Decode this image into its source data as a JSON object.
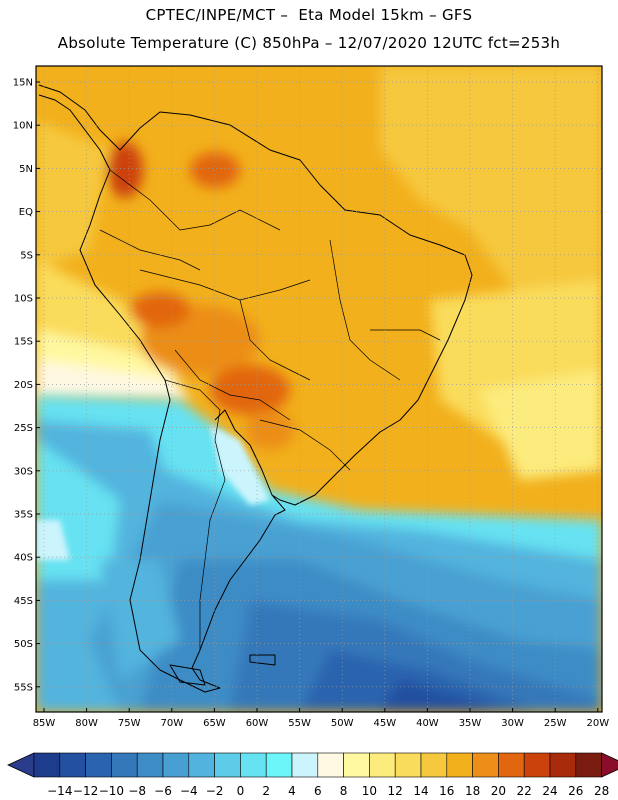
{
  "header": {
    "line1": "CPTEC/INPE/MCT –  Eta Model 15km – GFS",
    "line2": "Absolute Temperature (C) 850hPa – 12/07/2020 12UTC fct=253h"
  },
  "map": {
    "lat_labels": [
      "15N",
      "10N",
      "5N",
      "EQ",
      "5S",
      "10S",
      "15S",
      "20S",
      "25S",
      "30S",
      "35S",
      "40S",
      "45S",
      "50S",
      "55S"
    ],
    "lon_labels": [
      "85W",
      "80W",
      "75W",
      "70W",
      "65W",
      "60W",
      "55W",
      "50W",
      "45W",
      "40W",
      "35W",
      "30W",
      "25W",
      "20W"
    ]
  },
  "colorbar": {
    "labels": [
      "-14",
      "-12",
      "-10",
      "-8",
      "-6",
      "-4",
      "-2",
      "0",
      "2",
      "4",
      "6",
      "8",
      "10",
      "12",
      "14",
      "16",
      "18",
      "20",
      "22",
      "24",
      "26",
      "28"
    ],
    "colors": [
      "#1e3c8c",
      "#2350a0",
      "#2a64ae",
      "#3478ba",
      "#3e8cc6",
      "#48a0d2",
      "#52b4de",
      "#5ccce8",
      "#66e2f2",
      "#6cf6fa",
      "#ccf4fc",
      "#fff8e2",
      "#fff8a0",
      "#fcec7e",
      "#fadc5c",
      "#f6c83e",
      "#f2b01c",
      "#ec8e18",
      "#e26610",
      "#cc420c",
      "#a82c0c",
      "#7a1c10"
    ],
    "under_color": "#2a3c8c",
    "over_color": "#8a0e2a"
  }
}
